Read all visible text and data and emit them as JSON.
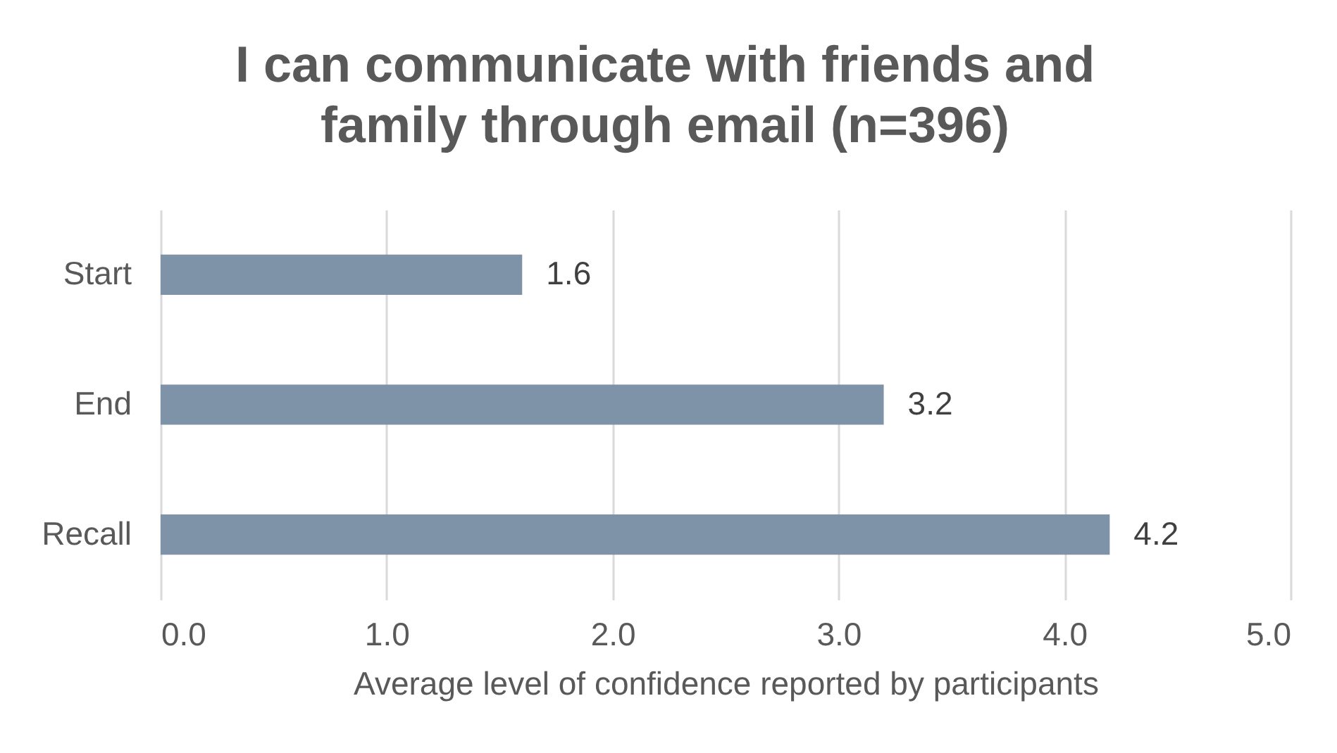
{
  "chart_data": {
    "type": "bar",
    "orientation": "horizontal",
    "title": "I can communicate with friends and family through email (n=396)",
    "xlabel": "Average level of confidence reported by participants",
    "categories": [
      "Start",
      "End",
      "Recall"
    ],
    "values": [
      1.6,
      3.2,
      4.2
    ],
    "color": "#7f93a8",
    "xlim": [
      0,
      5
    ],
    "xticks": [
      {
        "value": 0,
        "label": "0.0"
      },
      {
        "value": 1,
        "label": "1.0"
      },
      {
        "value": 2,
        "label": "2.0"
      },
      {
        "value": 3,
        "label": "3.0"
      },
      {
        "value": 4,
        "label": "4.0"
      },
      {
        "value": 5,
        "label": "5.0"
      }
    ],
    "grid": "x",
    "data_labels": true
  }
}
